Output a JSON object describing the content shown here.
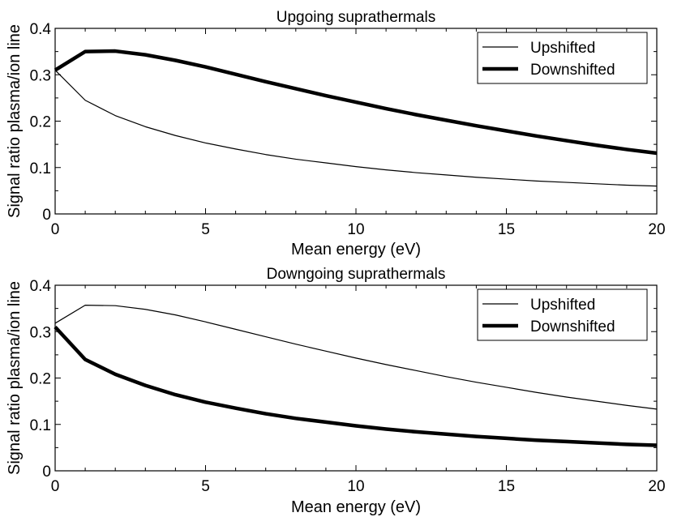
{
  "chart_data": [
    {
      "type": "line",
      "title": "Upgoing suprathermals",
      "xlabel": "Mean energy (eV)",
      "ylabel": "Signal ratio plasma/ion line",
      "xlim": [
        0,
        20
      ],
      "ylim": [
        0,
        0.4
      ],
      "xticks": [
        "0",
        "5",
        "10",
        "15",
        "20"
      ],
      "yticks": [
        "0",
        "0.1",
        "0.2",
        "0.3",
        "0.4"
      ],
      "x": [
        0,
        1,
        2,
        3,
        4,
        5,
        6,
        7,
        8,
        9,
        10,
        11,
        12,
        13,
        14,
        15,
        16,
        17,
        18,
        19,
        20
      ],
      "legend_position": "top-right",
      "series": [
        {
          "name": "Upshifted",
          "color": "#000000",
          "weight": "thin",
          "values": [
            0.31,
            0.245,
            0.212,
            0.188,
            0.169,
            0.153,
            0.14,
            0.128,
            0.118,
            0.11,
            0.102,
            0.095,
            0.089,
            0.084,
            0.079,
            0.075,
            0.071,
            0.068,
            0.065,
            0.062,
            0.06
          ]
        },
        {
          "name": "Downshifted",
          "color": "#000000",
          "weight": "thick",
          "values": [
            0.31,
            0.35,
            0.351,
            0.343,
            0.331,
            0.317,
            0.301,
            0.285,
            0.27,
            0.255,
            0.241,
            0.227,
            0.214,
            0.202,
            0.19,
            0.179,
            0.168,
            0.158,
            0.148,
            0.139,
            0.131
          ]
        }
      ]
    },
    {
      "type": "line",
      "title": "Downgoing suprathermals",
      "xlabel": "Mean energy (eV)",
      "ylabel": "Signal ratio plasma/ion line",
      "xlim": [
        0,
        20
      ],
      "ylim": [
        0,
        0.4
      ],
      "xticks": [
        "0",
        "5",
        "10",
        "15",
        "20"
      ],
      "yticks": [
        "0",
        "0.1",
        "0.2",
        "0.3",
        "0.4"
      ],
      "x": [
        0,
        1,
        2,
        3,
        4,
        5,
        6,
        7,
        8,
        9,
        10,
        11,
        12,
        13,
        14,
        15,
        16,
        17,
        18,
        19,
        20
      ],
      "legend_position": "top-right",
      "series": [
        {
          "name": "Upshifted",
          "color": "#000000",
          "weight": "thin",
          "values": [
            0.318,
            0.357,
            0.356,
            0.348,
            0.336,
            0.321,
            0.305,
            0.289,
            0.273,
            0.258,
            0.243,
            0.229,
            0.216,
            0.203,
            0.191,
            0.18,
            0.169,
            0.159,
            0.15,
            0.141,
            0.133
          ]
        },
        {
          "name": "Downshifted",
          "color": "#000000",
          "weight": "thick",
          "values": [
            0.31,
            0.24,
            0.208,
            0.184,
            0.164,
            0.148,
            0.135,
            0.123,
            0.113,
            0.105,
            0.097,
            0.09,
            0.084,
            0.079,
            0.074,
            0.07,
            0.066,
            0.063,
            0.06,
            0.057,
            0.055
          ]
        }
      ]
    }
  ]
}
